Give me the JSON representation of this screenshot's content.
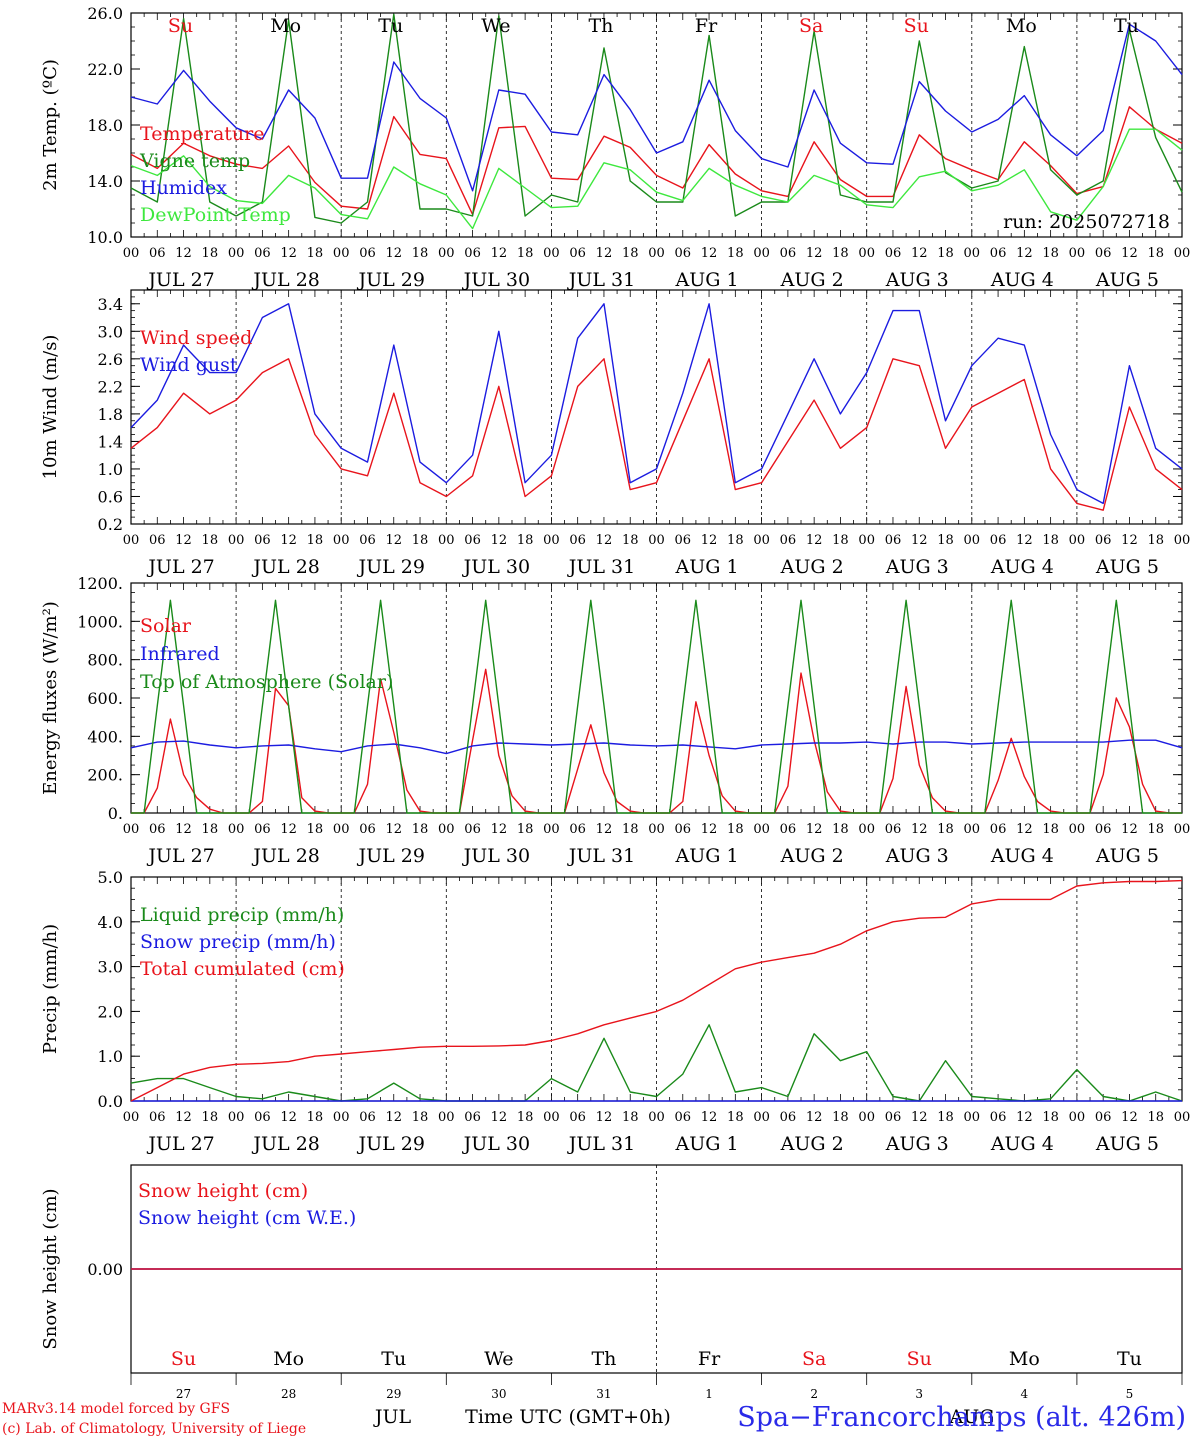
{
  "days": [
    {
      "abbr": "Su",
      "weekend": true,
      "month_label": "JUL",
      "day_num": "27"
    },
    {
      "abbr": "Mo",
      "weekend": false,
      "month_label": "JUL",
      "day_num": "28"
    },
    {
      "abbr": "Tu",
      "weekend": false,
      "month_label": "JUL",
      "day_num": "29"
    },
    {
      "abbr": "We",
      "weekend": false,
      "month_label": "JUL",
      "day_num": "30"
    },
    {
      "abbr": "Th",
      "weekend": false,
      "month_label": "JUL",
      "day_num": "31"
    },
    {
      "abbr": "Fr",
      "weekend": false,
      "month_label": "AUG",
      "day_num": "1"
    },
    {
      "abbr": "Sa",
      "weekend": true,
      "month_label": "AUG",
      "day_num": "2"
    },
    {
      "abbr": "Su",
      "weekend": true,
      "month_label": "AUG",
      "day_num": "3"
    },
    {
      "abbr": "Mo",
      "weekend": false,
      "month_label": "AUG",
      "day_num": "4"
    },
    {
      "abbr": "Tu",
      "weekend": false,
      "month_label": "AUG",
      "day_num": "5"
    }
  ],
  "hour_labels": [
    "00",
    "06",
    "12",
    "18"
  ],
  "colors": {
    "red": "#e8141c",
    "green": "#1a8a1a",
    "blue": "#1c1ce0",
    "light_green": "#3ee83e",
    "weekend": "#e8141c",
    "axis": "#000000"
  },
  "footer": {
    "credit_line1": "MARv3.14 model forced by GFS",
    "credit_line2": "(c) Lab. of Climatology, University of Liege",
    "month_jul": "JUL",
    "month_aug": "AUG",
    "time_label": "Time UTC (GMT+0h)",
    "station": "Spa−Francorchamps (alt. 426m)"
  },
  "chart_data": [
    {
      "type": "line",
      "id": "temp",
      "ylabel": "2m Temp. (ºC)",
      "ylim": [
        10,
        26
      ],
      "yticks": [
        10,
        14,
        18,
        22,
        26
      ],
      "ytick_labels": [
        "10.0",
        "14.0",
        "18.0",
        "22.0",
        "26.0"
      ],
      "annotation": "run: 2025072718",
      "x_range_hours": [
        0,
        240
      ],
      "series": [
        {
          "name": "Temperature",
          "color": "red",
          "step_hours": 6,
          "values": [
            15.9,
            14.9,
            16.7,
            15.8,
            15.2,
            14.9,
            16.5,
            13.9,
            12.2,
            12.0,
            18.6,
            15.9,
            15.6,
            11.6,
            17.8,
            17.9,
            14.2,
            14.1,
            17.2,
            16.4,
            14.4,
            13.5,
            16.6,
            14.5,
            13.3,
            12.9,
            16.8,
            14.1,
            12.9,
            12.9,
            17.3,
            15.6,
            14.8,
            14.1,
            16.8,
            15.1,
            13.1,
            13.6,
            19.3,
            17.7,
            16.7
          ]
        },
        {
          "name": "Vigne temp",
          "color": "green",
          "step_hours": 6,
          "values": [
            13.5,
            12.5,
            25.6,
            12.5,
            11.5,
            12.5,
            25.5,
            11.4,
            11.0,
            12.5,
            25.9,
            12.0,
            12.0,
            11.5,
            25.8,
            11.5,
            13.0,
            12.5,
            23.5,
            14.0,
            12.5,
            12.5,
            24.4,
            11.5,
            12.5,
            12.5,
            24.7,
            13.0,
            12.5,
            12.5,
            24.0,
            14.6,
            13.5,
            14.0,
            23.6,
            14.8,
            13.0,
            14.0,
            24.8,
            17.1,
            13.2
          ]
        },
        {
          "name": "Humidex",
          "color": "blue",
          "step_hours": 6,
          "values": [
            20.0,
            19.5,
            21.9,
            19.7,
            17.8,
            17.0,
            20.5,
            18.5,
            14.2,
            14.2,
            22.5,
            19.9,
            18.5,
            13.3,
            20.5,
            20.2,
            17.5,
            17.3,
            21.6,
            19.1,
            16.0,
            16.8,
            21.2,
            17.6,
            15.6,
            15.0,
            20.5,
            16.7,
            15.3,
            15.2,
            21.1,
            19.0,
            17.5,
            18.4,
            20.1,
            17.3,
            15.8,
            17.6,
            25.2,
            24.0,
            21.6
          ]
        },
        {
          "name": "DewPoint Temp",
          "color": "light_green",
          "step_hours": 6,
          "values": [
            15.1,
            14.4,
            15.8,
            13.6,
            12.6,
            12.4,
            14.4,
            13.5,
            11.6,
            11.3,
            15.0,
            13.8,
            13.0,
            10.6,
            14.9,
            13.5,
            12.1,
            12.2,
            15.3,
            14.8,
            13.2,
            12.6,
            14.9,
            13.7,
            12.9,
            12.5,
            14.4,
            13.7,
            12.3,
            12.1,
            14.3,
            14.7,
            13.3,
            13.7,
            14.8,
            11.8,
            11.2,
            13.6,
            17.7,
            17.7,
            16.2
          ]
        }
      ]
    },
    {
      "type": "line",
      "id": "wind",
      "ylabel": "10m Wind (m/s)",
      "ylim": [
        0.2,
        3.6
      ],
      "yticks": [
        0.2,
        0.6,
        1.0,
        1.4,
        1.8,
        2.2,
        2.6,
        3.0,
        3.4
      ],
      "ytick_labels": [
        "0.2",
        "0.6",
        "1.0",
        "1.4",
        "1.8",
        "2.2",
        "2.6",
        "3.0",
        "3.4"
      ],
      "x_range_hours": [
        0,
        240
      ],
      "series": [
        {
          "name": "Wind speed",
          "color": "red",
          "step_hours": 6,
          "values": [
            1.3,
            1.6,
            2.1,
            1.8,
            2.0,
            2.4,
            2.6,
            1.5,
            1.0,
            0.9,
            2.1,
            0.8,
            0.6,
            0.9,
            2.2,
            0.6,
            0.9,
            2.2,
            2.6,
            0.7,
            0.8,
            1.7,
            2.6,
            0.7,
            0.8,
            1.4,
            2.0,
            1.3,
            1.6,
            2.6,
            2.5,
            1.3,
            1.9,
            2.1,
            2.3,
            1.0,
            0.5,
            0.4,
            1.9,
            1.0,
            0.7
          ]
        },
        {
          "name": "Wind gust",
          "color": "blue",
          "step_hours": 6,
          "values": [
            1.6,
            2.0,
            2.8,
            2.4,
            2.4,
            3.2,
            3.4,
            1.8,
            1.3,
            1.1,
            2.8,
            1.1,
            0.8,
            1.2,
            3.0,
            0.8,
            1.2,
            2.9,
            3.4,
            0.8,
            1.0,
            2.1,
            3.4,
            0.8,
            1.0,
            1.8,
            2.6,
            1.8,
            2.4,
            3.3,
            3.3,
            1.7,
            2.5,
            2.9,
            2.8,
            1.5,
            0.7,
            0.5,
            2.5,
            1.3,
            1.0
          ]
        }
      ]
    },
    {
      "type": "line",
      "id": "energy",
      "ylabel": "Energy fluxes (W/m²)",
      "ylim": [
        0,
        1200
      ],
      "yticks": [
        0,
        200,
        400,
        600,
        800,
        1000,
        1200
      ],
      "ytick_labels": [
        "0.",
        "200.",
        "400.",
        "600.",
        "800.",
        "1000.",
        "1200."
      ],
      "x_range_hours": [
        0,
        240
      ],
      "series": [
        {
          "name": "Solar",
          "color": "red",
          "step_hours": 3,
          "values": [
            0,
            0,
            130,
            490,
            200,
            80,
            20,
            0,
            0,
            0,
            60,
            650,
            560,
            80,
            10,
            0,
            0,
            0,
            150,
            700,
            420,
            120,
            10,
            0,
            0,
            0,
            380,
            750,
            300,
            90,
            10,
            0,
            0,
            0,
            230,
            460,
            210,
            60,
            10,
            0,
            0,
            0,
            60,
            580,
            300,
            90,
            10,
            0,
            0,
            0,
            140,
            730,
            380,
            110,
            10,
            0,
            0,
            0,
            180,
            660,
            250,
            80,
            10,
            0,
            0,
            0,
            170,
            390,
            190,
            60,
            10,
            0,
            0,
            0,
            200,
            600,
            450,
            150,
            10,
            0,
            0
          ]
        },
        {
          "name": "Infrared",
          "color": "blue",
          "step_hours": 6,
          "values": [
            340,
            370,
            375,
            355,
            340,
            350,
            355,
            335,
            320,
            350,
            360,
            340,
            310,
            350,
            365,
            360,
            355,
            360,
            365,
            355,
            350,
            355,
            345,
            335,
            355,
            360,
            365,
            365,
            370,
            360,
            370,
            370,
            360,
            365,
            370,
            370,
            370,
            370,
            380,
            380,
            340
          ]
        },
        {
          "name": "Top of Atmosphere (Solar)",
          "color": "green",
          "step_hours": 3,
          "values": [
            0,
            0,
            560,
            1110,
            560,
            0,
            0,
            0,
            0,
            0,
            560,
            1110,
            560,
            0,
            0,
            0,
            0,
            0,
            560,
            1110,
            560,
            0,
            0,
            0,
            0,
            0,
            560,
            1110,
            560,
            0,
            0,
            0,
            0,
            0,
            560,
            1110,
            560,
            0,
            0,
            0,
            0,
            0,
            560,
            1110,
            560,
            0,
            0,
            0,
            0,
            0,
            560,
            1110,
            560,
            0,
            0,
            0,
            0,
            0,
            560,
            1110,
            560,
            0,
            0,
            0,
            0,
            0,
            560,
            1110,
            560,
            0,
            0,
            0,
            0,
            0,
            560,
            1110,
            560,
            0,
            0,
            0,
            0
          ]
        }
      ]
    },
    {
      "type": "line",
      "id": "precip",
      "ylabel": "Precip (mm/h)",
      "ylim": [
        0,
        5
      ],
      "yticks": [
        0,
        1,
        2,
        3,
        4,
        5
      ],
      "ytick_labels": [
        "0.0",
        "1.0",
        "2.0",
        "3.0",
        "4.0",
        "5.0"
      ],
      "x_range_hours": [
        0,
        240
      ],
      "series": [
        {
          "name": "Liquid precip (mm/h)",
          "color": "green",
          "step_hours": 6,
          "values": [
            0.4,
            0.5,
            0.5,
            0.3,
            0.1,
            0.05,
            0.2,
            0.1,
            0.0,
            0.05,
            0.4,
            0.05,
            0.0,
            0.0,
            0.0,
            0.0,
            0.5,
            0.2,
            1.4,
            0.2,
            0.1,
            0.6,
            1.7,
            0.2,
            0.3,
            0.1,
            1.5,
            0.9,
            1.1,
            0.1,
            0.0,
            0.9,
            0.1,
            0.05,
            0.0,
            0.05,
            0.7,
            0.1,
            0.0,
            0.2,
            0.0
          ]
        },
        {
          "name": "Snow precip (mm/h)",
          "color": "blue",
          "step_hours": 6,
          "values": [
            0,
            0,
            0,
            0,
            0,
            0,
            0,
            0,
            0,
            0,
            0,
            0,
            0,
            0,
            0,
            0,
            0,
            0,
            0,
            0,
            0,
            0,
            0,
            0,
            0,
            0,
            0,
            0,
            0,
            0,
            0,
            0,
            0,
            0,
            0,
            0,
            0,
            0,
            0,
            0,
            0
          ]
        },
        {
          "name": "Total cumulated (cm)",
          "color": "red",
          "step_hours": 6,
          "values": [
            0.0,
            0.3,
            0.6,
            0.75,
            0.82,
            0.84,
            0.88,
            1.0,
            1.05,
            1.1,
            1.15,
            1.2,
            1.22,
            1.22,
            1.23,
            1.25,
            1.35,
            1.5,
            1.7,
            1.85,
            2.0,
            2.25,
            2.6,
            2.95,
            3.1,
            3.2,
            3.3,
            3.5,
            3.8,
            4.0,
            4.08,
            4.1,
            4.4,
            4.5,
            4.5,
            4.5,
            4.8,
            4.87,
            4.9,
            4.9,
            4.92
          ]
        }
      ]
    },
    {
      "type": "line",
      "id": "snow",
      "ylabel": "Snow height (cm)",
      "ylim": [
        -1,
        1
      ],
      "yticks": [
        0
      ],
      "ytick_labels": [
        "0.00"
      ],
      "x_range_hours": [
        0,
        240
      ],
      "series": [
        {
          "name": "Snow height (cm)",
          "color": "red",
          "step_hours": 240,
          "values": [
            0,
            0
          ]
        },
        {
          "name": "Snow height (cm W.E.)",
          "color": "blue",
          "step_hours": 240,
          "values": [
            0,
            0
          ]
        }
      ]
    }
  ]
}
